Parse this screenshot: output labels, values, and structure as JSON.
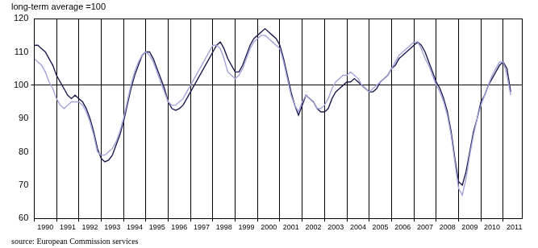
{
  "chart_data": {
    "type": "line",
    "ylabel": "long-term average =100",
    "source": "source: European Commission services",
    "categories": [
      "1990",
      null,
      null,
      null,
      null,
      null,
      "1991",
      null,
      null,
      null,
      null,
      null,
      "1992",
      null,
      null,
      null,
      null,
      null,
      "1993",
      null,
      null,
      null,
      null,
      null,
      "1994",
      null,
      null,
      null,
      null,
      null,
      "1995",
      null,
      null,
      null,
      null,
      null,
      "1996",
      null,
      null,
      null,
      null,
      null,
      "1997",
      null,
      null,
      null,
      null,
      null,
      "1998",
      null,
      null,
      null,
      null,
      null,
      "1999",
      null,
      null,
      null,
      null,
      null,
      "2000",
      null,
      null,
      null,
      null,
      null,
      "2001",
      null,
      null,
      null,
      null,
      null,
      "2002",
      null,
      null,
      null,
      null,
      null,
      "2003",
      null,
      null,
      null,
      null,
      null,
      "2004",
      null,
      null,
      null,
      null,
      null,
      "2005",
      null,
      null,
      null,
      null,
      null,
      "2006",
      null,
      null,
      null,
      null,
      null,
      "2007",
      null,
      null,
      null,
      null,
      null,
      "2008",
      null,
      null,
      null,
      null,
      null,
      "2009",
      null,
      null,
      null,
      null,
      null,
      "2010",
      null,
      null,
      null,
      null,
      null,
      "2011",
      null,
      null,
      null,
      null,
      null
    ],
    "series": [
      {
        "color": "#1c1c50",
        "values": [
          112,
          112,
          111,
          110,
          108,
          106,
          103,
          101,
          99,
          97,
          96,
          97,
          96,
          95,
          93,
          90,
          86,
          81,
          78,
          77,
          77.5,
          79,
          82,
          85,
          89,
          94,
          99,
          103,
          106,
          109,
          110,
          110,
          108,
          105,
          102,
          99,
          95,
          93,
          92.5,
          93,
          94,
          96,
          98,
          100,
          102,
          104,
          106,
          108,
          110,
          112,
          113,
          111,
          108,
          106,
          104,
          104,
          106,
          109,
          112,
          114,
          115,
          116,
          117,
          116,
          115,
          114,
          112,
          108,
          103,
          98,
          94,
          91,
          94,
          97,
          96,
          95,
          93,
          92,
          92,
          93,
          96,
          98,
          99,
          100,
          101,
          101,
          102,
          101,
          100,
          99,
          98,
          98,
          99,
          101,
          102,
          103,
          105,
          106,
          108,
          109,
          110,
          111,
          112,
          113,
          112,
          110,
          107,
          104,
          101,
          99,
          96,
          92,
          86,
          78,
          71,
          70,
          74,
          80,
          86,
          90,
          95,
          97,
          100,
          102,
          104,
          106,
          107,
          105,
          98,
          null,
          null,
          null
        ]
      },
      {
        "color": "#a3a3d9",
        "values": [
          108,
          107,
          106,
          104,
          101,
          99,
          96,
          94,
          93,
          94,
          95,
          95,
          95,
          94,
          92,
          89,
          85,
          80,
          79,
          79,
          80,
          81,
          83,
          86,
          90,
          95,
          100,
          104,
          107,
          109,
          110,
          109,
          107,
          104,
          101,
          98,
          95,
          94,
          94,
          95,
          96,
          98,
          100,
          102,
          104,
          106,
          108,
          110,
          112,
          112,
          111,
          108,
          104,
          103,
          102,
          103,
          105,
          108,
          111,
          113,
          114,
          115,
          115,
          114,
          113,
          112,
          111,
          107,
          102,
          97,
          94,
          92,
          95,
          97,
          96,
          95,
          93,
          93,
          94,
          96,
          99,
          101,
          102,
          103,
          103,
          104,
          103,
          102,
          100,
          99,
          98,
          99,
          100,
          101,
          102,
          103,
          105,
          107,
          109,
          110,
          111,
          112,
          113,
          113,
          111,
          108,
          106,
          103,
          100,
          98,
          95,
          91,
          85,
          77,
          69,
          67,
          72,
          79,
          85,
          90,
          94,
          97,
          100,
          103,
          105,
          107,
          107,
          103,
          97,
          null,
          null,
          null
        ]
      }
    ],
    "reference_line": 100,
    "ylim": [
      60,
      120
    ],
    "yticks": [
      60,
      70,
      80,
      90,
      100,
      110,
      120
    ],
    "grid": true
  }
}
